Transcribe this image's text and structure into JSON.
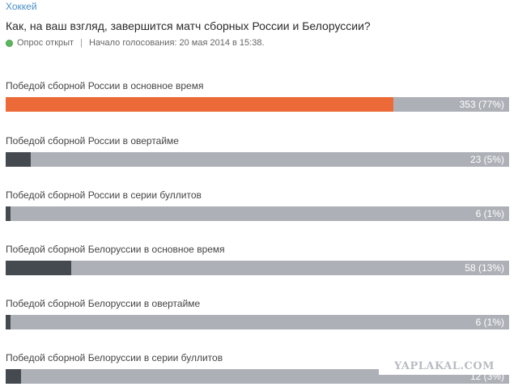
{
  "poll": {
    "category": "Хоккей",
    "question": "Как, на ваш взгляд, завершится матч сборных России и Белоруссии?",
    "status": "Опрос открыт",
    "start": "Начало голосования: 20 мая 2014 в 15:38.",
    "separator": "|"
  },
  "colors": {
    "leader": "#ec6a37",
    "other": "#454a51",
    "track": "#adb0b6"
  },
  "options": [
    {
      "label": "Победой сборной России в основное время",
      "votes_text": "353 (77%)",
      "percent": 77,
      "leader": true
    },
    {
      "label": "Победой сборной России в овертайме",
      "votes_text": "23 (5%)",
      "percent": 5,
      "leader": false
    },
    {
      "label": "Победой сборной России в серии буллитов",
      "votes_text": "6 (1%)",
      "percent": 1,
      "leader": false
    },
    {
      "label": "Победой сборной Белоруссии в основное время",
      "votes_text": "58 (13%)",
      "percent": 13,
      "leader": false
    },
    {
      "label": "Победой сборной Белоруссии в овертайме",
      "votes_text": "6 (1%)",
      "percent": 1,
      "leader": false
    },
    {
      "label": "Победой сборной Белоруссии в серии буллитов",
      "votes_text": "12 (3%)",
      "percent": 3,
      "leader": false
    }
  ],
  "watermark": "YAPLAKAL.COM"
}
